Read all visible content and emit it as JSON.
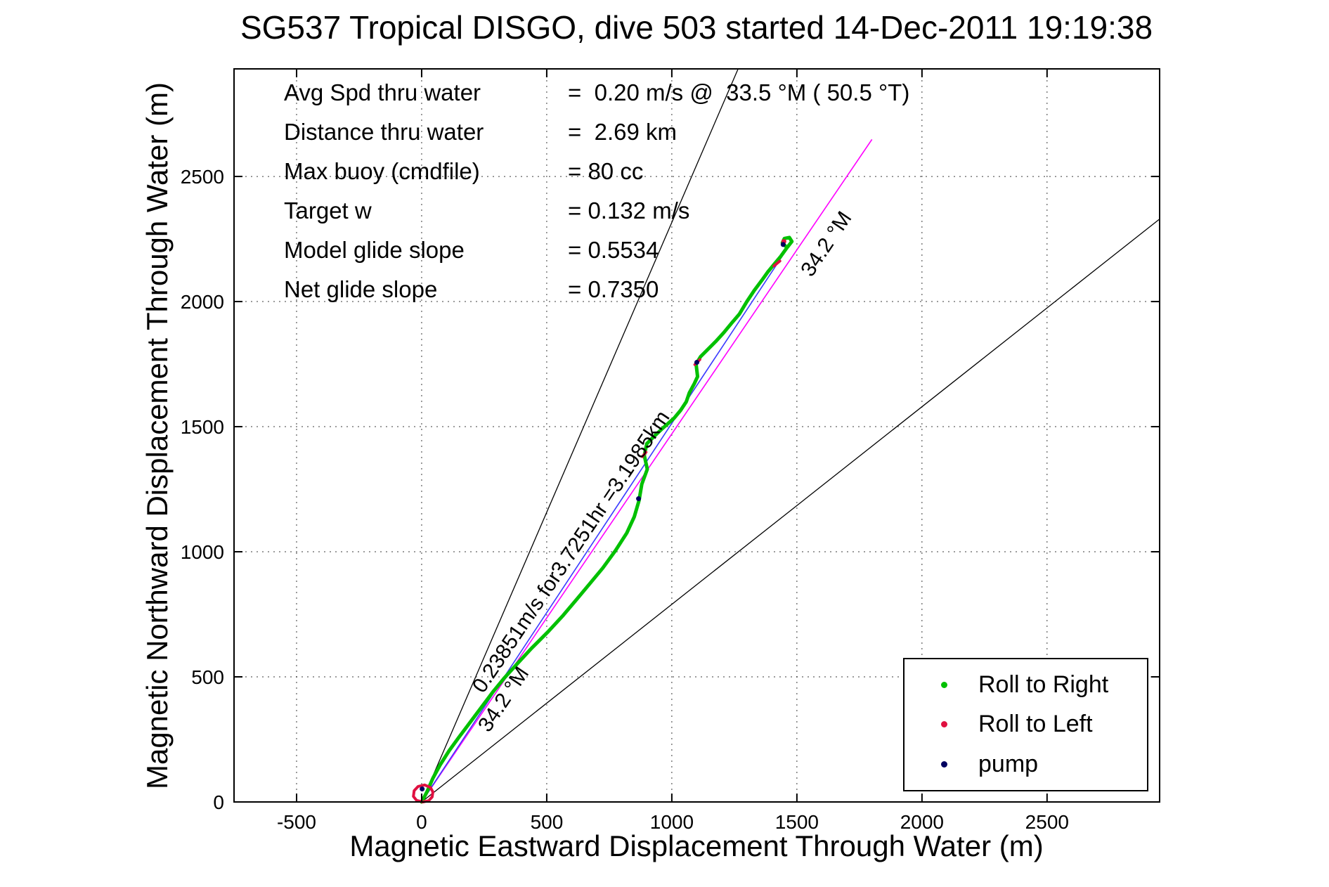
{
  "title": "SG537 Tropical DISGO, dive 503 started 14-Dec-2011 19:19:38",
  "stats": {
    "rows": [
      {
        "label": "Avg Spd thru water",
        "value": "=  0.20 m/s @  33.5 °M ( 50.5 °T)"
      },
      {
        "label": "Distance thru water",
        "value": "=  2.69 km"
      },
      {
        "label": "Max buoy (cmdfile)",
        "value": "= 80 cc"
      },
      {
        "label": "Target w",
        "value": "= 0.132 m/s"
      },
      {
        "label": "Model glide slope",
        "value": "= 0.5534"
      },
      {
        "label": "Net glide slope",
        "value": "= 0.7350"
      }
    ]
  },
  "chart_data": {
    "type": "scatter",
    "title": "SG537 Tropical DISGO, dive 503 started 14-Dec-2011 19:19:38",
    "xlabel": "Magnetic Eastward Displacement Through Water (m)",
    "ylabel": "Magnetic Northward Displacement Through Water (m)",
    "xlim": [
      -750,
      2950
    ],
    "ylim": [
      0,
      2930
    ],
    "xticks": [
      -500,
      0,
      500,
      1000,
      1500,
      2000,
      2500
    ],
    "yticks": [
      0,
      500,
      1000,
      1500,
      2000,
      2500
    ],
    "grid": true,
    "legend_position": "lower right",
    "series": [
      {
        "name": "Roll to Right",
        "color": "#00c000",
        "width": 5,
        "paths": [
          [
            [
              0,
              0
            ],
            [
              22,
              42
            ],
            [
              45,
              95
            ],
            [
              75,
              150
            ],
            [
              110,
              205
            ],
            [
              150,
              260
            ],
            [
              195,
              320
            ],
            [
              240,
              380
            ],
            [
              285,
              440
            ],
            [
              330,
              495
            ],
            [
              380,
              550
            ],
            [
              440,
              615
            ],
            [
              505,
              680
            ],
            [
              565,
              745
            ],
            [
              620,
              810
            ],
            [
              670,
              870
            ],
            [
              724,
              935
            ],
            [
              775,
              1005
            ],
            [
              820,
              1075
            ],
            [
              850,
              1140
            ],
            [
              869,
              1205
            ],
            [
              880,
              1270
            ],
            [
              902,
              1330
            ],
            [
              890,
              1385
            ],
            [
              900,
              1432
            ],
            [
              930,
              1462
            ],
            [
              965,
              1495
            ],
            [
              1010,
              1535
            ],
            [
              1035,
              1565
            ],
            [
              1058,
              1600
            ],
            [
              1070,
              1635
            ],
            [
              1090,
              1672
            ],
            [
              1103,
              1700
            ],
            [
              1097,
              1750
            ],
            [
              1115,
              1780
            ],
            [
              1140,
              1805
            ],
            [
              1175,
              1840
            ],
            [
              1207,
              1875
            ],
            [
              1240,
              1915
            ],
            [
              1270,
              1950
            ],
            [
              1300,
              2000
            ],
            [
              1330,
              2045
            ],
            [
              1360,
              2085
            ],
            [
              1385,
              2120
            ],
            [
              1410,
              2150
            ],
            [
              1435,
              2180
            ],
            [
              1460,
              2215
            ],
            [
              1480,
              2240
            ],
            [
              1470,
              2256
            ],
            [
              1450,
              2252
            ],
            [
              1442,
              2235
            ],
            [
              1454,
              2222
            ]
          ]
        ],
        "points": []
      },
      {
        "name": "Roll to Left",
        "color": "#e01040",
        "width": 4,
        "paths": [
          [
            [
              5,
              0
            ],
            [
              28,
              5
            ],
            [
              42,
              20
            ],
            [
              45,
              40
            ],
            [
              35,
              58
            ],
            [
              12,
              68
            ],
            [
              -14,
              62
            ],
            [
              -30,
              45
            ],
            [
              -33,
              22
            ],
            [
              -20,
              6
            ],
            [
              5,
              0
            ]
          ],
          [
            [
              882,
              1380
            ],
            [
              897,
              1398
            ]
          ],
          [
            [
              1092,
              1748
            ],
            [
              1112,
              1768
            ]
          ],
          [
            [
              1408,
              2142
            ],
            [
              1432,
              2162
            ]
          ]
        ],
        "points": [
          [
            1448,
            2240
          ]
        ]
      },
      {
        "name": "pump",
        "color": "#000060",
        "width": 3,
        "paths": [],
        "points": [
          [
            2,
            52
          ],
          [
            867,
            1212
          ],
          [
            1100,
            1757
          ],
          [
            1445,
            2228
          ]
        ]
      }
    ],
    "reference_lines": [
      {
        "name": "bearing-line-magenta",
        "color": "#ff00ff",
        "width": 1.6,
        "from": [
          0,
          0
        ],
        "to": [
          1800,
          2648
        ]
      },
      {
        "name": "displacement-line-blue",
        "color": "#3a3aff",
        "width": 1.6,
        "from": [
          0,
          0
        ],
        "to": [
          1482,
          2243
        ]
      },
      {
        "name": "fan-line-upper",
        "color": "#000000",
        "width": 1.3,
        "from": [
          0,
          0
        ],
        "to": [
          1265,
          2930
        ]
      },
      {
        "name": "fan-line-lower",
        "color": "#000000",
        "width": 1.3,
        "from": [
          0,
          0
        ],
        "to": [
          2950,
          2330
        ]
      }
    ],
    "annotations": [
      {
        "text": "0.23851m/s for3.7251hr =3.1985km",
        "x": 620,
        "y": 985,
        "rotation_deg": -56
      },
      {
        "text": "34.2 °M",
        "x": 1640,
        "y": 2215,
        "rotation_deg": -56
      },
      {
        "text": "34.2 °M",
        "x": 350,
        "y": 395,
        "rotation_deg": -56
      }
    ]
  }
}
